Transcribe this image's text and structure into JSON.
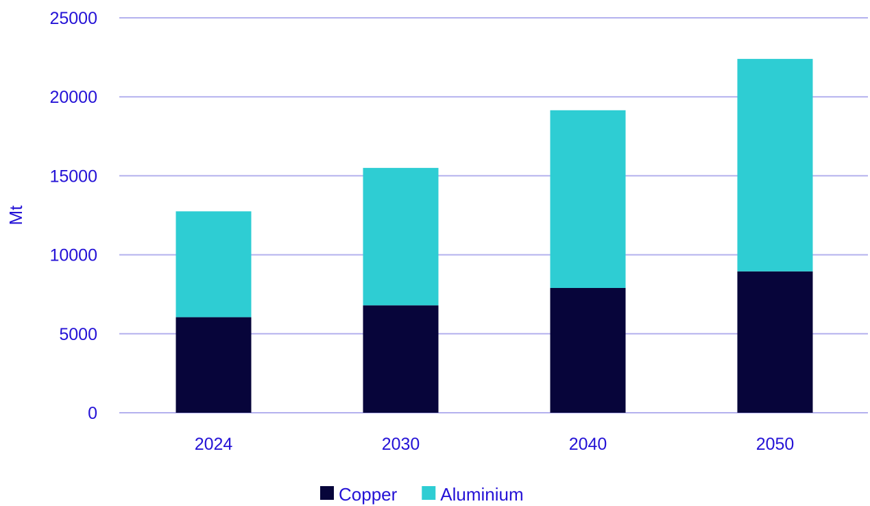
{
  "chart_data": {
    "type": "bar",
    "stacked": true,
    "categories": [
      "2024",
      "2030",
      "2040",
      "2050"
    ],
    "series": [
      {
        "name": "Copper",
        "color": "#07053a",
        "values": [
          6050,
          6800,
          7900,
          8950
        ]
      },
      {
        "name": "Aluminium",
        "color": "#2ecdd3",
        "values": [
          6700,
          8700,
          11250,
          13450
        ]
      }
    ],
    "ylabel": "Mt",
    "xlabel": "",
    "ylim": [
      0,
      25000
    ],
    "yticks": [
      "0",
      "5000",
      "10000",
      "15000",
      "20000",
      "25000"
    ],
    "grid": true,
    "legend_position": "bottom-center",
    "text_color": "#2412d6",
    "grid_color": "#b3b0ee"
  }
}
